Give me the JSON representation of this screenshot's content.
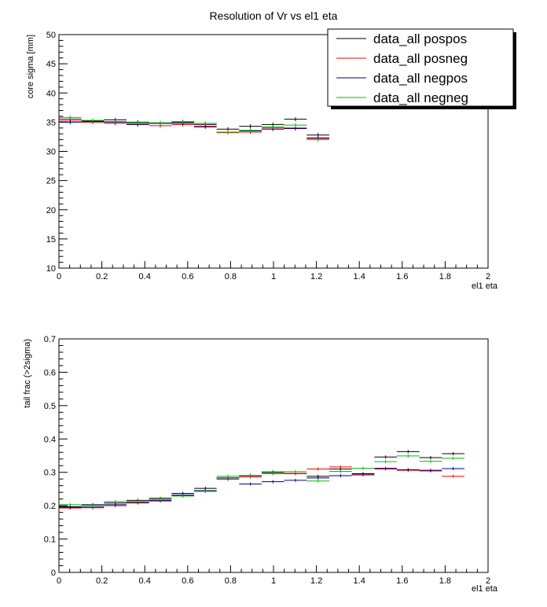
{
  "title": "Resolution of Vr vs  el1 eta",
  "legend": [
    {
      "name": "data_all pospos",
      "color": "#000000"
    },
    {
      "name": "data_all posneg",
      "color": "#ff0000"
    },
    {
      "name": "data_all negpos",
      "color": "#000080"
    },
    {
      "name": "data_all negneg",
      "color": "#00bb00"
    }
  ],
  "chart_data": [
    {
      "type": "line",
      "title": "Resolution of Vr vs  el1 eta",
      "xlabel": "el1 eta",
      "ylabel": "core sigma [mm]",
      "xlim": [
        0,
        2
      ],
      "ylim": [
        10,
        50
      ],
      "xticks": [
        "0",
        "0.2",
        "0.4",
        "0.6",
        "0.8",
        "1",
        "1.2",
        "1.4",
        "1.6",
        "1.8",
        "2"
      ],
      "yticks": [
        "10",
        "15",
        "20",
        "25",
        "30",
        "35",
        "40",
        "45",
        "50"
      ],
      "bin_edges": [
        0,
        0.105,
        0.21,
        0.315,
        0.42,
        0.525,
        0.63,
        0.735,
        0.84,
        0.945,
        1.05,
        1.155,
        1.26
      ],
      "series": [
        {
          "name": "data_all pospos",
          "values": [
            35.5,
            35.2,
            35.4,
            35.0,
            34.8,
            35.0,
            34.6,
            33.8,
            34.3,
            34.6,
            35.5,
            32.8
          ]
        },
        {
          "name": "data_all posneg",
          "values": [
            35.2,
            35.0,
            34.8,
            34.7,
            34.4,
            34.6,
            34.3,
            33.2,
            33.3,
            34.0,
            34.0,
            32.2
          ]
        },
        {
          "name": "data_all negpos",
          "values": [
            35.0,
            35.1,
            35.0,
            34.6,
            34.8,
            34.8,
            34.2,
            33.3,
            33.5,
            33.8,
            33.9,
            32.3
          ]
        },
        {
          "name": "data_all negneg",
          "values": [
            35.8,
            35.3,
            35.1,
            34.9,
            34.9,
            35.1,
            34.8,
            33.3,
            33.6,
            34.2,
            34.5,
            32.0
          ]
        }
      ]
    },
    {
      "type": "line",
      "xlabel": "el1 eta",
      "ylabel": "tail frac (>2sigma)",
      "xlim": [
        0,
        2
      ],
      "ylim": [
        0,
        0.7
      ],
      "xticks": [
        "0",
        "0.2",
        "0.4",
        "0.6",
        "0.8",
        "1",
        "1.2",
        "1.4",
        "1.6",
        "1.8",
        "2"
      ],
      "yticks": [
        "0",
        "0.1",
        "0.2",
        "0.3",
        "0.4",
        "0.5",
        "0.6",
        "0.7"
      ],
      "bin_edges": [
        0,
        0.105,
        0.21,
        0.315,
        0.42,
        0.525,
        0.63,
        0.735,
        0.84,
        0.945,
        1.05,
        1.155,
        1.26,
        1.365,
        1.47,
        1.575,
        1.68,
        1.785,
        1.89
      ],
      "series": [
        {
          "name": "data_all pospos",
          "values": [
            0.197,
            0.203,
            0.208,
            0.216,
            0.222,
            0.237,
            0.252,
            0.283,
            0.29,
            0.301,
            0.296,
            0.288,
            0.31,
            0.296,
            0.346,
            0.362,
            0.344,
            0.356
          ]
        },
        {
          "name": "data_all posneg",
          "values": [
            0.193,
            0.194,
            0.2,
            0.208,
            0.214,
            0.23,
            0.243,
            0.279,
            0.286,
            0.296,
            0.297,
            0.31,
            0.316,
            0.292,
            0.31,
            0.306,
            0.304,
            0.288
          ]
        },
        {
          "name": "data_all negpos",
          "values": [
            0.195,
            0.196,
            0.203,
            0.21,
            0.216,
            0.232,
            0.245,
            0.283,
            0.265,
            0.272,
            0.276,
            0.283,
            0.29,
            0.295,
            0.312,
            0.308,
            0.306,
            0.311
          ]
        },
        {
          "name": "data_all negneg",
          "values": [
            0.203,
            0.2,
            0.212,
            0.212,
            0.219,
            0.229,
            0.243,
            0.288,
            0.291,
            0.298,
            0.302,
            0.274,
            0.303,
            0.312,
            0.332,
            0.349,
            0.333,
            0.342
          ]
        }
      ]
    }
  ]
}
